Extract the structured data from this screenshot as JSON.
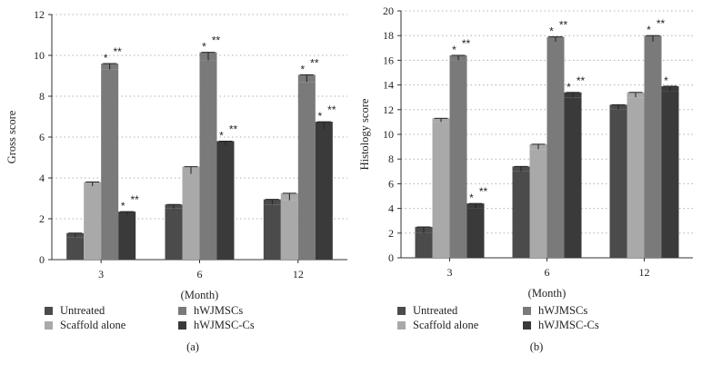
{
  "chart_data": [
    {
      "type": "bar",
      "panel_label": "(a)",
      "ylabel": "Gross score",
      "xlabel": "(Month)",
      "categories": [
        "3",
        "6",
        "12"
      ],
      "ylim": [
        0,
        12
      ],
      "yticks": [
        "0",
        "2",
        "4",
        "6",
        "8",
        "10",
        "12"
      ],
      "grid": true,
      "series": [
        {
          "name": "Untreated",
          "values": [
            1.1,
            2.5,
            2.7
          ],
          "errors": [
            0.2,
            0.2,
            0.25
          ],
          "sig": [
            "",
            "",
            ""
          ]
        },
        {
          "name": "Scaffold alone",
          "values": [
            3.6,
            4.2,
            2.9
          ],
          "errors": [
            0.2,
            0.35,
            0.35
          ],
          "sig": [
            "",
            "",
            ""
          ]
        },
        {
          "name": "hWJMSCs",
          "values": [
            9.3,
            9.75,
            8.7
          ],
          "errors": [
            0.3,
            0.4,
            0.35
          ],
          "sig": [
            "* **",
            "* **",
            "* **"
          ]
        },
        {
          "name": "hWJMSC-Cs",
          "values": [
            2.2,
            5.6,
            6.4
          ],
          "errors": [
            0.15,
            0.2,
            0.35
          ],
          "sig": [
            "* **",
            "* **",
            "* **"
          ]
        }
      ]
    },
    {
      "type": "bar",
      "panel_label": "(b)",
      "ylabel": "Histology score",
      "xlabel": "(Month)",
      "categories": [
        "3",
        "6",
        "12"
      ],
      "ylim": [
        0,
        20
      ],
      "yticks": [
        "0",
        "2",
        "4",
        "6",
        "8",
        "10",
        "12",
        "14",
        "16",
        "18",
        "20"
      ],
      "grid": true,
      "series": [
        {
          "name": "Untreated",
          "values": [
            2.0,
            7.0,
            12.0
          ],
          "errors": [
            0.5,
            0.4,
            0.4
          ],
          "sig": [
            "",
            "",
            ""
          ]
        },
        {
          "name": "Scaffold alone",
          "values": [
            11.0,
            8.8,
            13.0
          ],
          "errors": [
            0.3,
            0.4,
            0.4
          ],
          "sig": [
            "",
            "",
            ""
          ]
        },
        {
          "name": "hWJMSCs",
          "values": [
            16.0,
            17.5,
            17.5
          ],
          "errors": [
            0.4,
            0.4,
            0.5
          ],
          "sig": [
            "* **",
            "* **",
            "* **"
          ]
        },
        {
          "name": "hWJMSC-Cs",
          "values": [
            4.0,
            13.0,
            13.5
          ],
          "errors": [
            0.4,
            0.4,
            0.4
          ],
          "sig": [
            "* **",
            "* **",
            "*"
          ]
        }
      ]
    }
  ],
  "colors": {
    "Untreated": "#4b4b4b",
    "Scaffold alone": "#a9a9a9",
    "hWJMSCs": "#7a7a7a",
    "hWJMSC-Cs": "#3a3a3a",
    "axis": "#333333",
    "grid": "#b0b0b0"
  }
}
